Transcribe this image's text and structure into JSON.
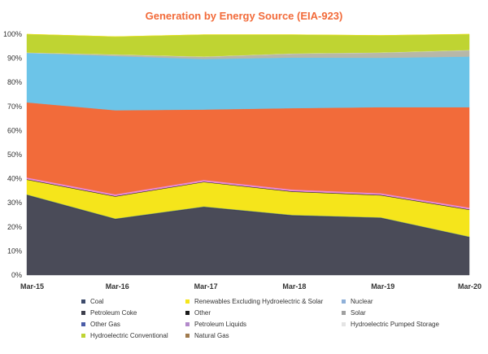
{
  "chart_data": {
    "type": "area",
    "stacked": true,
    "normalized": true,
    "title": "Generation by Energy Source (EIA-923)",
    "x": [
      "Mar-15",
      "Mar-16",
      "Mar-17",
      "Mar-18",
      "Mar-19",
      "Mar-20"
    ],
    "yticks": [
      "0%",
      "10%",
      "20%",
      "30%",
      "40%",
      "50%",
      "60%",
      "70%",
      "80%",
      "90%",
      "100%"
    ],
    "ylim": [
      0,
      100
    ],
    "legend_position": "bottom",
    "series": [
      {
        "name": "Coal",
        "color": "#4a4b58",
        "values": [
          33,
          23,
          28,
          24.5,
          23.5,
          15.5
        ]
      },
      {
        "name": "Petroleum Coke",
        "color": "#3e3f4c",
        "values": [
          0.3,
          0.3,
          0.3,
          0.3,
          0.3,
          0.3
        ]
      },
      {
        "name": "Other Gas",
        "color": "#4b5da8",
        "values": [
          0.1,
          0.1,
          0.1,
          0.1,
          0.1,
          0.1
        ]
      },
      {
        "name": "Hydroelectric Conventional",
        "color": "#bfd432",
        "values": [
          0.2,
          0.2,
          0.2,
          0.2,
          0.2,
          0.2
        ]
      },
      {
        "name": "Renewables Excluding Hydroelectric & Solar",
        "color": "#f5e51b",
        "values": [
          6,
          9,
          10,
          9.5,
          9,
          11
        ]
      },
      {
        "name": "Other",
        "color": "#1a1a1a",
        "values": [
          0.2,
          0.2,
          0.2,
          0.2,
          0.2,
          0.2
        ]
      },
      {
        "name": "Petroleum Liquids",
        "color": "#e88ad8",
        "values": [
          0.7,
          0.7,
          0.7,
          0.7,
          0.7,
          0.7
        ]
      },
      {
        "name": "Natural Gas",
        "color": "#f26b3a",
        "values": [
          31.2,
          34.9,
          29.2,
          33.8,
          35.7,
          41.7
        ]
      },
      {
        "name": "Nuclear",
        "color": "#6cc4e8",
        "values": [
          20.5,
          22.5,
          21,
          21,
          20.5,
          21
        ]
      },
      {
        "name": "Solar",
        "color": "#b7b7a8",
        "values": [
          0.1,
          0.6,
          0.9,
          1.6,
          2.1,
          2.6
        ]
      },
      {
        "name": "Hydroelectric Pumped Storage",
        "color": "#e8e8e8",
        "values": [
          0.1,
          0.1,
          0.1,
          0.1,
          0.1,
          0.1
        ]
      },
      {
        "name": "Hydroelectric Conventional",
        "color": "#bfd432",
        "values": [
          7.6,
          7.4,
          9.1,
          7.8,
          7.1,
          6.6
        ]
      },
      {
        "name": "Renewables Excluding Hydroelectric & Solar",
        "color": "#f5e51b",
        "values": [
          0,
          0,
          0,
          0,
          0,
          0
        ]
      }
    ],
    "legend": [
      {
        "name": "Coal",
        "color": "#3d4a6b"
      },
      {
        "name": "Renewables Excluding Hydroelectric & Solar",
        "color": "#f5e51b"
      },
      {
        "name": "Nuclear",
        "color": "#8fb0d8"
      },
      {
        "name": "Petroleum Coke",
        "color": "#3e3f4c"
      },
      {
        "name": "Other",
        "color": "#1a1a1a"
      },
      {
        "name": "Solar",
        "color": "#a0a0a0"
      },
      {
        "name": "Other Gas",
        "color": "#4b5da8"
      },
      {
        "name": "Petroleum Liquids",
        "color": "#b38acb"
      },
      {
        "name": "Hydroelectric Pumped Storage",
        "color": "#e4e4e4"
      },
      {
        "name": "Hydroelectric Conventional",
        "color": "#bfd432"
      },
      {
        "name": "Natural Gas",
        "color": "#a07b4e"
      }
    ]
  }
}
